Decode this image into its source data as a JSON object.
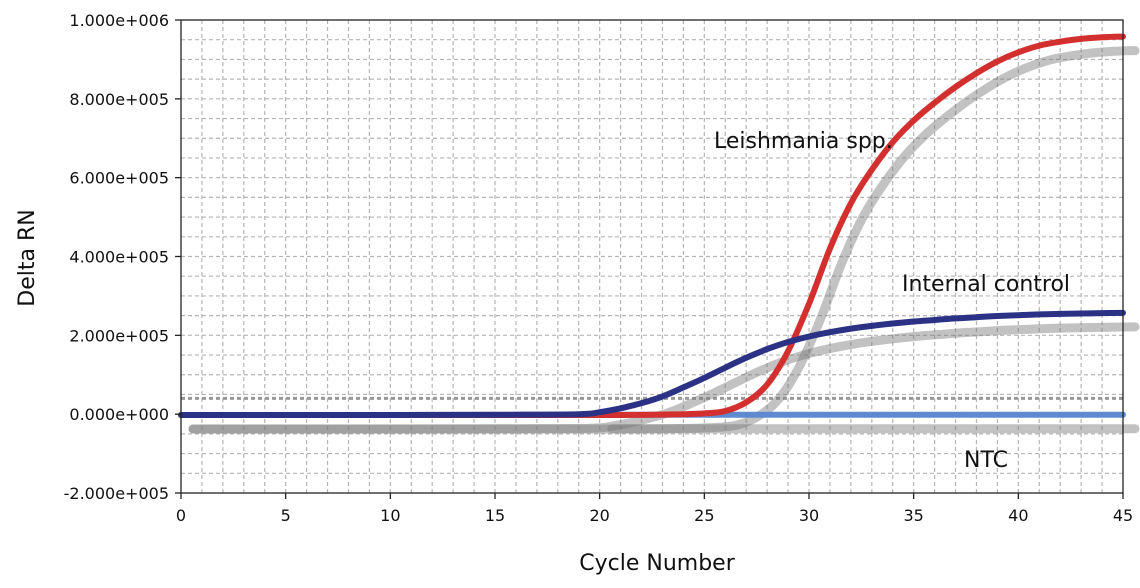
{
  "chart_data": {
    "type": "line",
    "title": "",
    "xlabel": "Cycle Number",
    "ylabel": "Delta RN",
    "xlim": [
      0,
      45
    ],
    "ylim": [
      -200000,
      1000000
    ],
    "x_ticks": [
      0,
      5,
      10,
      15,
      20,
      25,
      30,
      35,
      40,
      45
    ],
    "x_tick_labels": [
      "0",
      "5",
      "10",
      "15",
      "20",
      "25",
      "30",
      "35",
      "40",
      "45"
    ],
    "y_ticks": [
      -200000,
      0,
      200000,
      400000,
      600000,
      800000,
      1000000
    ],
    "y_tick_labels": [
      "-2.000e+005",
      "0.000e+000",
      "2.000e+005",
      "4.000e+005",
      "6.000e+005",
      "8.000e+005",
      "1.000e+006"
    ],
    "grid": true,
    "threshold": 40000,
    "x": [
      0,
      5,
      10,
      15,
      19,
      20,
      21,
      22,
      23,
      24,
      25,
      26,
      27,
      28,
      29,
      30,
      31,
      32,
      33,
      34,
      35,
      36,
      37,
      38,
      39,
      40,
      41,
      42,
      43,
      44,
      45
    ],
    "series": [
      {
        "name": "Leishmania spp.",
        "color": "#d42f2f",
        "values": [
          -2000,
          -2000,
          -2000,
          -2000,
          -2000,
          -2000,
          -2000,
          -1800,
          -1000,
          0,
          2000,
          8000,
          30000,
          75000,
          160000,
          280000,
          420000,
          535000,
          620000,
          690000,
          745000,
          790000,
          830000,
          865000,
          895000,
          918000,
          935000,
          945000,
          952000,
          956000,
          958000
        ]
      },
      {
        "name": "Internal control",
        "color": "#2b3285",
        "values": [
          -2000,
          -2000,
          -2000,
          -1500,
          0,
          5000,
          15000,
          28000,
          45000,
          68000,
          92000,
          118000,
          143000,
          165000,
          183000,
          197000,
          208000,
          217000,
          224000,
          230000,
          235000,
          239000,
          243000,
          246000,
          249000,
          251000,
          253000,
          254500,
          255500,
          256300,
          257000
        ]
      },
      {
        "name": "NTC",
        "color": "#5f8ad0",
        "values": [
          null,
          null,
          null,
          null,
          null,
          -1500,
          -1500,
          -1500,
          -1500,
          -1500,
          -1500,
          -1500,
          -1500,
          -1500,
          -1500,
          -1500,
          -1500,
          -1500,
          -1500,
          -1500,
          -1500,
          -1500,
          -1500,
          -1500,
          -1500,
          -1500,
          -1500,
          -1500,
          -1500,
          -1500,
          -1500
        ]
      }
    ]
  }
}
